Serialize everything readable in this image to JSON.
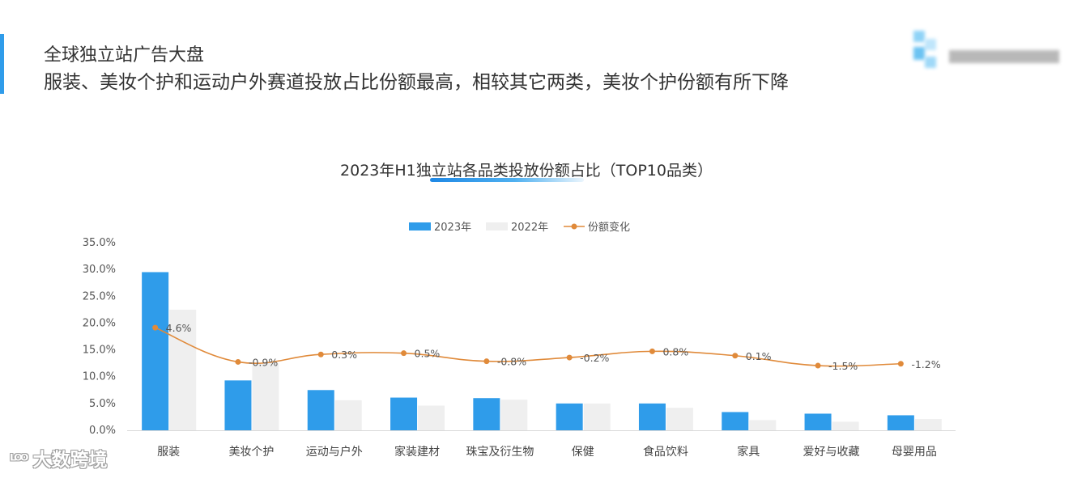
{
  "header": {
    "title": "全球独立站广告大盘",
    "subtitle": "服装、美妆个护和运动户外赛道投放占比份额最高，相较其它两类，美妆个护份额有所下降"
  },
  "watermark": {
    "text": "大数跨境"
  },
  "colors": {
    "accent": "#2f9cea",
    "bar2023": "#2f9cea",
    "bar2022": "#efefef",
    "line": "#e08a3a"
  },
  "chart_data": {
    "type": "bar",
    "title": "2023年H1独立站各品类投放份额占比（TOP10品类）",
    "categories": [
      "服装",
      "美妆个护",
      "运动与户外",
      "家装建材",
      "珠宝及衍生物",
      "保健",
      "食品饮料",
      "家具",
      "爱好与收藏",
      "母婴用品"
    ],
    "series": [
      {
        "name": "2023年",
        "type": "bar",
        "color": "#2f9cea",
        "values": [
          29.5,
          9.3,
          7.5,
          6.1,
          6.0,
          5.0,
          5.0,
          3.4,
          3.1,
          2.8
        ]
      },
      {
        "name": "2022年",
        "type": "bar",
        "color": "#efefef",
        "values": [
          22.5,
          12.5,
          5.6,
          4.6,
          5.7,
          5.0,
          4.2,
          1.9,
          1.6,
          2.1
        ]
      },
      {
        "name": "份额变化",
        "type": "line",
        "color": "#e08a3a",
        "values": [
          4.6,
          -0.9,
          0.3,
          0.5,
          -0.8,
          -0.2,
          0.8,
          0.1,
          -1.5,
          -1.2
        ],
        "labels": [
          "4.6%",
          "-0.9%",
          "0.3%",
          "0.5%",
          "-0.8%",
          "-0.2%",
          "0.8%",
          "0.1%",
          "-1.5%",
          "-1.2%"
        ]
      }
    ],
    "ylim": [
      0,
      35
    ],
    "yticks": [
      "0.0%",
      "5.0%",
      "10.0%",
      "15.0%",
      "20.0%",
      "25.0%",
      "30.0%",
      "35.0%"
    ],
    "legend": "top-center",
    "grid": false
  }
}
